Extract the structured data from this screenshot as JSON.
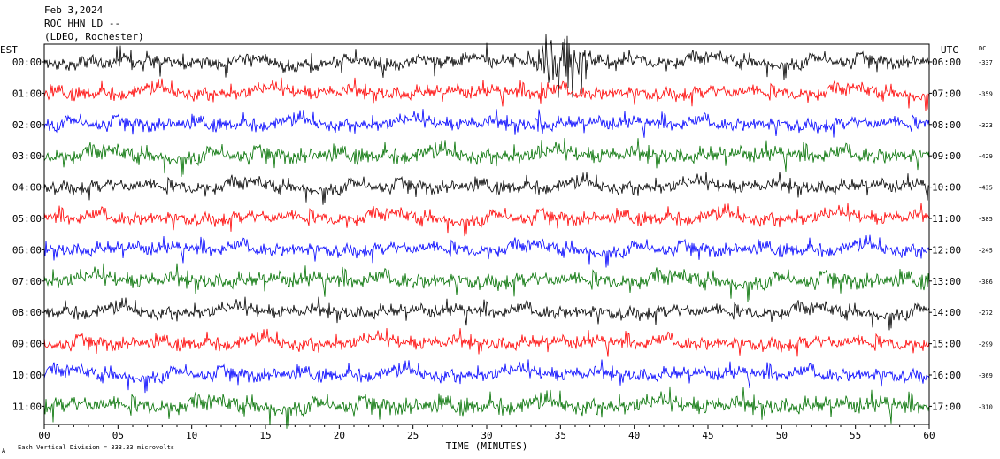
{
  "header": {
    "date": "Feb 3,2024",
    "station": "ROC HHN LD --",
    "network": "(LDEO, Rochester)"
  },
  "axis_labels": {
    "left_tz": "EST",
    "right_tz": "UTC",
    "dc": "DC",
    "xlabel": "TIME (MINUTES)",
    "footer": "Each Vertical Division =  333.33 microvolts",
    "corner_mark": "A"
  },
  "chart_data": {
    "type": "line",
    "title": "",
    "xlabel": "TIME (MINUTES)",
    "xlim": [
      0,
      60
    ],
    "x_ticks": [
      "00",
      "05",
      "10",
      "15",
      "20",
      "25",
      "30",
      "35",
      "40",
      "45",
      "50",
      "55",
      "60"
    ],
    "colors": [
      "#000000",
      "#ff0000",
      "#0000ff",
      "#007000"
    ],
    "series": [
      {
        "est": "00:00",
        "utc": "06:00",
        "dc": "-337",
        "color": "#000000",
        "base_amp": 1.0
      },
      {
        "est": "01:00",
        "utc": "07:00",
        "dc": "-359",
        "color": "#ff0000",
        "base_amp": 1.0
      },
      {
        "est": "02:00",
        "utc": "08:00",
        "dc": "-323",
        "color": "#0000ff",
        "base_amp": 1.0
      },
      {
        "est": "03:00",
        "utc": "09:00",
        "dc": "-429",
        "color": "#007000",
        "base_amp": 1.2
      },
      {
        "est": "04:00",
        "utc": "10:00",
        "dc": "-435",
        "color": "#000000",
        "base_amp": 1.0
      },
      {
        "est": "05:00",
        "utc": "11:00",
        "dc": "-385",
        "color": "#ff0000",
        "base_amp": 1.0
      },
      {
        "est": "06:00",
        "utc": "12:00",
        "dc": "-245",
        "color": "#0000ff",
        "base_amp": 1.0
      },
      {
        "est": "07:00",
        "utc": "13:00",
        "dc": "-386",
        "color": "#007000",
        "base_amp": 1.2
      },
      {
        "est": "08:00",
        "utc": "14:00",
        "dc": "-272",
        "color": "#000000",
        "base_amp": 1.0
      },
      {
        "est": "09:00",
        "utc": "15:00",
        "dc": "-299",
        "color": "#ff0000",
        "base_amp": 1.0
      },
      {
        "est": "10:00",
        "utc": "16:00",
        "dc": "-369",
        "color": "#0000ff",
        "base_amp": 1.0
      },
      {
        "est": "11:00",
        "utc": "17:00",
        "dc": "-310",
        "color": "#007000",
        "base_amp": 1.3
      }
    ],
    "events": [
      {
        "row": 0,
        "t_start": 32.8,
        "t_end": 37.5,
        "peak_amp": 5.0
      },
      {
        "row": 1,
        "t_start": 33.0,
        "t_end": 34.5,
        "peak_amp": 1.6
      },
      {
        "row": 2,
        "t_start": 33.3,
        "t_end": 34.0,
        "peak_amp": 2.0
      },
      {
        "row": 3,
        "t_start": 33.4,
        "t_end": 33.8,
        "peak_amp": 1.8
      }
    ],
    "grid": false
  }
}
